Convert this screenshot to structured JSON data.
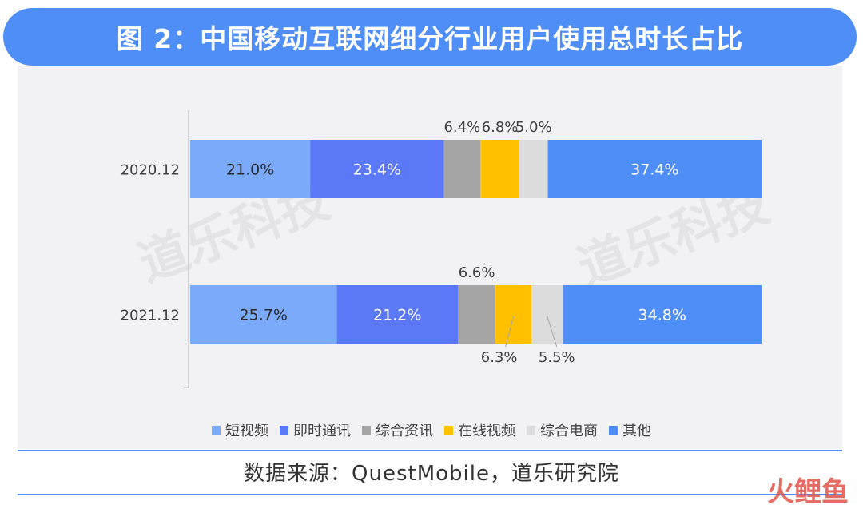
{
  "title": "图 2：中国移动互联网细分行业用户使用总时长占比",
  "source": "数据来源：QuestMobile，道乐研究院",
  "watermark": "道乐科技",
  "brand_mark": "火鲤鱼",
  "colors": {
    "header": "#4F8EF7",
    "panel": "#F2F2F4"
  },
  "chart_data": {
    "type": "bar",
    "orientation": "horizontal",
    "stacked": true,
    "percent_stacked": true,
    "categories": [
      "2020.12",
      "2021.12"
    ],
    "series": [
      {
        "name": "短视频",
        "color": "#7AAAF9",
        "values": [
          21.0,
          25.7
        ]
      },
      {
        "name": "即时通讯",
        "color": "#5B78F6",
        "values": [
          23.4,
          21.2
        ]
      },
      {
        "name": "综合资讯",
        "color": "#A5A5A5",
        "values": [
          6.4,
          6.6
        ]
      },
      {
        "name": "在线视频",
        "color": "#FFC000",
        "values": [
          6.8,
          6.3
        ]
      },
      {
        "name": "综合电商",
        "color": "#DCDCDC",
        "values": [
          5.0,
          5.5
        ]
      },
      {
        "name": "其他",
        "color": "#4F8EF7",
        "values": [
          37.4,
          34.8
        ]
      }
    ],
    "data_labels": [
      [
        "21.0%",
        "23.4%",
        "6.4%",
        "6.8%",
        "5.0%",
        "37.4%"
      ],
      [
        "25.7%",
        "21.2%",
        "6.6%",
        "6.3%",
        "5.5%",
        "34.8%"
      ]
    ],
    "label_position": [
      [
        "inside",
        "inside",
        "above",
        "above",
        "above",
        "inside"
      ],
      [
        "inside",
        "inside",
        "above",
        "below",
        "below",
        "inside"
      ]
    ],
    "legend_position": "bottom",
    "grid": false
  }
}
